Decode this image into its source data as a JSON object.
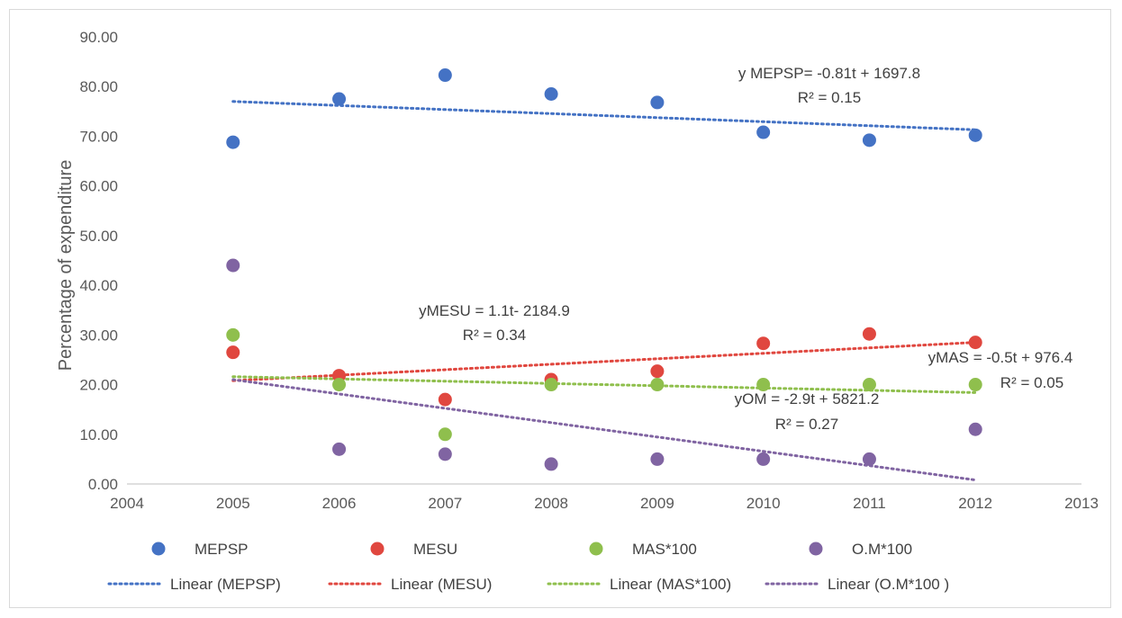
{
  "chart_data": {
    "type": "scatter",
    "title": "",
    "xlabel": "",
    "ylabel": "Percentage of expenditure",
    "xlim": [
      2004,
      2013
    ],
    "ylim": [
      0,
      90
    ],
    "x_ticks": [
      "2004",
      "2005",
      "2006",
      "2007",
      "2008",
      "2009",
      "2010",
      "2011",
      "2012",
      "2013"
    ],
    "y_ticks": [
      "0.00",
      "10.00",
      "20.00",
      "30.00",
      "40.00",
      "50.00",
      "60.00",
      "70.00",
      "80.00",
      "90.00"
    ],
    "grid": false,
    "legend_position": "bottom",
    "x": [
      2005,
      2006,
      2007,
      2008,
      2009,
      2010,
      2011,
      2012
    ],
    "series": [
      {
        "name": "MEPSP",
        "color": "#4472c4",
        "values": [
          68.8,
          77.5,
          82.3,
          78.5,
          76.8,
          70.8,
          69.2,
          70.2
        ],
        "trend_name": "Linear (MEPSP)",
        "trend": [
          77.0,
          71.3
        ],
        "equation": "y MEPSP= -0.81t + 1697.8",
        "r2": "R² = 0.15"
      },
      {
        "name": "MESU",
        "color": "#e0473f",
        "values": [
          26.5,
          21.8,
          17.0,
          21.0,
          22.7,
          28.3,
          30.2,
          28.5
        ],
        "trend_name": "Linear (MESU)",
        "trend": [
          20.8,
          28.5
        ],
        "equation": "yMESU = 1.1t- 2184.9",
        "r2": "R² = 0.34"
      },
      {
        "name": "MAS*100",
        "color": "#8fbf4d",
        "values": [
          30.0,
          20.0,
          10.0,
          20.0,
          20.0,
          20.0,
          20.0,
          20.0
        ],
        "trend_name": "Linear (MAS*100)",
        "trend": [
          21.6,
          18.4
        ],
        "equation": "yMAS = -0.5t + 976.4",
        "r2": "R² = 0.05"
      },
      {
        "name": "O.M*100",
        "color": "#8064a2",
        "values": [
          44.0,
          7.0,
          6.0,
          4.0,
          5.0,
          5.0,
          5.0,
          11.0
        ],
        "trend_name": "Linear (O.M*100 )",
        "trend": [
          21.0,
          0.8
        ],
        "equation": "yOM = -2.9t + 5821.2",
        "r2": "R² = 0.27"
      }
    ]
  }
}
